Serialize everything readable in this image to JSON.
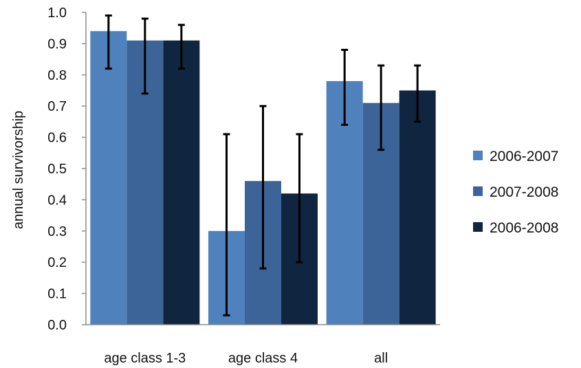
{
  "chart_data": {
    "type": "bar",
    "title": "",
    "xlabel": "",
    "ylabel": "annual survivorship",
    "ylim": [
      0,
      1.0
    ],
    "yticks": [
      "0.0",
      "0.1",
      "0.2",
      "0.3",
      "0.4",
      "0.5",
      "0.6",
      "0.7",
      "0.8",
      "0.9",
      "1.0"
    ],
    "categories": [
      "age class 1-3",
      "age class 4",
      "all"
    ],
    "grid": false,
    "legend_position": "right",
    "series": [
      {
        "name": "2006-2007",
        "color": "#4f81bd",
        "values": [
          0.94,
          0.3,
          0.78
        ],
        "error_low": [
          0.82,
          0.03,
          0.64
        ],
        "error_high": [
          0.99,
          0.61,
          0.88
        ]
      },
      {
        "name": "2007-2008",
        "color": "#3d6499",
        "values": [
          0.91,
          0.46,
          0.71
        ],
        "error_low": [
          0.74,
          0.18,
          0.56
        ],
        "error_high": [
          0.98,
          0.7,
          0.83
        ]
      },
      {
        "name": "2006-2008",
        "color": "#10253f",
        "values": [
          0.91,
          0.42,
          0.75
        ],
        "error_low": [
          0.82,
          0.2,
          0.65
        ],
        "error_high": [
          0.96,
          0.61,
          0.83
        ]
      }
    ]
  }
}
